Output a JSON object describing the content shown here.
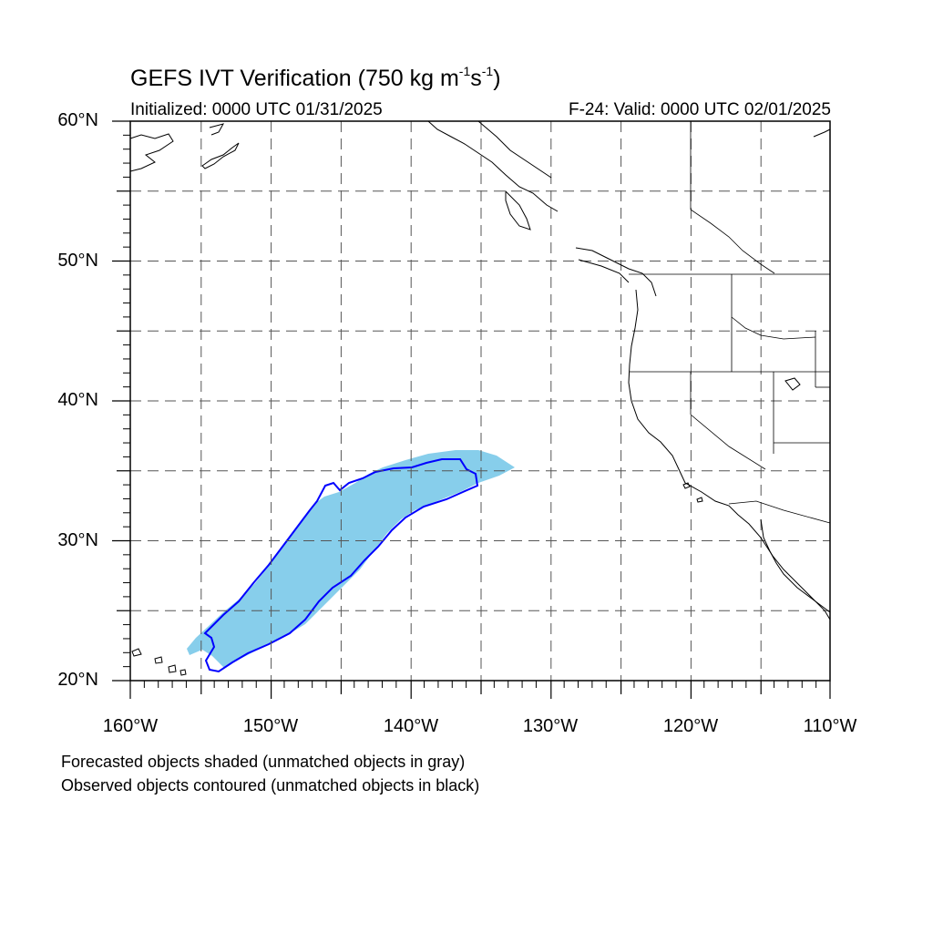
{
  "title": {
    "prefix": "GEFS IVT Verification (750 kg m",
    "exp1": "-1",
    "mid": "s",
    "exp2": "-1",
    "suffix": ")"
  },
  "initialized": "Initialized: 0000 UTC 01/31/2025",
  "valid": "F-24: Valid: 0000 UTC 02/01/2025",
  "map": {
    "lon_range": [
      -160,
      -110
    ],
    "lat_range": [
      20,
      60
    ],
    "grid": "dashed every 5°",
    "lat_labels": [
      "20°N",
      "30°N",
      "40°N",
      "50°N",
      "60°N"
    ],
    "lon_labels": [
      "160°W",
      "150°W",
      "140°W",
      "130°W",
      "120°W",
      "110°W"
    ],
    "forecast_fill_color": "#87ceeb",
    "observed_contour_color": "#0000ff"
  },
  "legend": {
    "line1": "Forecasted objects shaded (unmatched objects in gray)",
    "line2": "Observed objects contoured (unmatched objects in black)"
  }
}
